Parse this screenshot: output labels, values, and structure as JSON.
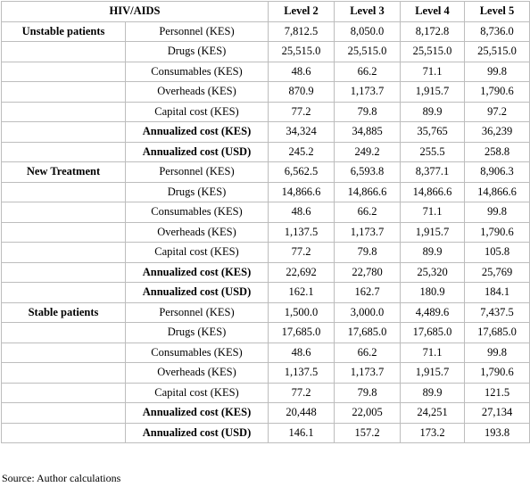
{
  "table": {
    "header": [
      "HIV/AIDS",
      "Level 2",
      "Level 3",
      "Level 4",
      "Level 5"
    ],
    "groups": [
      {
        "label": "Unstable patients",
        "rows": [
          {
            "item": "Personnel (KES)",
            "values": [
              "7,812.5",
              "8,050.0",
              "8,172.8",
              "8,736.0"
            ]
          },
          {
            "item": "Drugs (KES)",
            "values": [
              "25,515.0",
              "25,515.0",
              "25,515.0",
              "25,515.0"
            ]
          },
          {
            "item": "Consumables (KES)",
            "values": [
              "48.6",
              "66.2",
              "71.1",
              "99.8"
            ]
          },
          {
            "item": "Overheads (KES)",
            "values": [
              "870.9",
              "1,173.7",
              "1,915.7",
              "1,790.6"
            ]
          },
          {
            "item": "Capital cost (KES)",
            "values": [
              "77.2",
              "79.8",
              "89.9",
              "97.2"
            ]
          },
          {
            "item": "Annualized cost (KES)",
            "values": [
              "34,324",
              "34,885",
              "35,765",
              "36,239"
            ]
          },
          {
            "item": "Annualized cost (USD)",
            "values": [
              "245.2",
              "249.2",
              "255.5",
              "258.8"
            ]
          }
        ]
      },
      {
        "label": "New Treatment",
        "rows": [
          {
            "item": "Personnel (KES)",
            "values": [
              "6,562.5",
              "6,593.8",
              "8,377.1",
              "8,906.3"
            ]
          },
          {
            "item": "Drugs (KES)",
            "values": [
              "14,866.6",
              "14,866.6",
              "14,866.6",
              "14,866.6"
            ]
          },
          {
            "item": "Consumables (KES)",
            "values": [
              "48.6",
              "66.2",
              "71.1",
              "99.8"
            ]
          },
          {
            "item": "Overheads (KES)",
            "values": [
              "1,137.5",
              "1,173.7",
              "1,915.7",
              "1,790.6"
            ]
          },
          {
            "item": "Capital cost (KES)",
            "values": [
              "77.2",
              "79.8",
              "89.9",
              "105.8"
            ]
          },
          {
            "item": "Annualized cost (KES)",
            "values": [
              "22,692",
              "22,780",
              "25,320",
              "25,769"
            ]
          },
          {
            "item": "Annualized cost (USD)",
            "values": [
              "162.1",
              "162.7",
              "180.9",
              "184.1"
            ]
          }
        ]
      },
      {
        "label": "Stable patients",
        "rows": [
          {
            "item": "Personnel (KES)",
            "values": [
              "1,500.0",
              "3,000.0",
              "4,489.6",
              "7,437.5"
            ]
          },
          {
            "item": "Drugs (KES)",
            "values": [
              "17,685.0",
              "17,685.0",
              "17,685.0",
              "17,685.0"
            ]
          },
          {
            "item": "Consumables (KES)",
            "values": [
              "48.6",
              "66.2",
              "71.1",
              "99.8"
            ]
          },
          {
            "item": "Overheads (KES)",
            "values": [
              "1,137.5",
              "1,173.7",
              "1,915.7",
              "1,790.6"
            ]
          },
          {
            "item": "Capital cost (KES)",
            "values": [
              "77.2",
              "79.8",
              "89.9",
              "121.5"
            ]
          },
          {
            "item": "Annualized cost (KES)",
            "values": [
              "20,448",
              "22,005",
              "24,251",
              "27,134"
            ]
          },
          {
            "item": "Annualized cost (USD)",
            "values": [
              "146.1",
              "157.2",
              "173.2",
              "193.8"
            ]
          }
        ]
      }
    ]
  },
  "source": "Source: Author calculations"
}
